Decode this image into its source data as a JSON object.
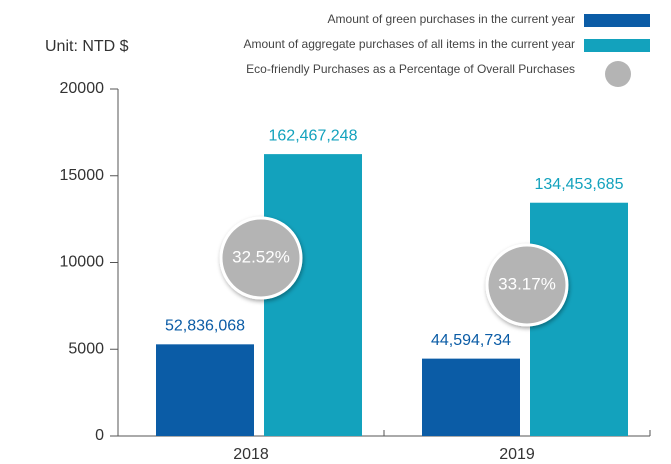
{
  "chart_data": {
    "type": "bar",
    "unit_label": "Unit: NTD $",
    "categories": [
      "2018",
      "2019"
    ],
    "series": [
      {
        "name": "Amount of green purchases in the current year",
        "color": "#0b5ca6",
        "values": [
          5283.6068,
          4459.4734
        ],
        "value_labels": [
          "52,836,068",
          "44,594,734"
        ]
      },
      {
        "name": "Amount of aggregate purchases of all items in the current year",
        "color": "#13a2bd",
        "values": [
          16246.7248,
          13445.3685
        ],
        "value_labels": [
          "162,467,248",
          "134,453,685"
        ]
      }
    ],
    "percentages": {
      "name": "Eco-friendly Purchases as a Percentage of Overall Purchases",
      "color": "#b4b4b4",
      "values": [
        32.52,
        33.17
      ],
      "value_labels": [
        "32.52%",
        "33.17%"
      ]
    },
    "ylim": [
      0,
      20000
    ],
    "yticks": [
      0,
      5000,
      10000,
      15000,
      20000
    ]
  }
}
